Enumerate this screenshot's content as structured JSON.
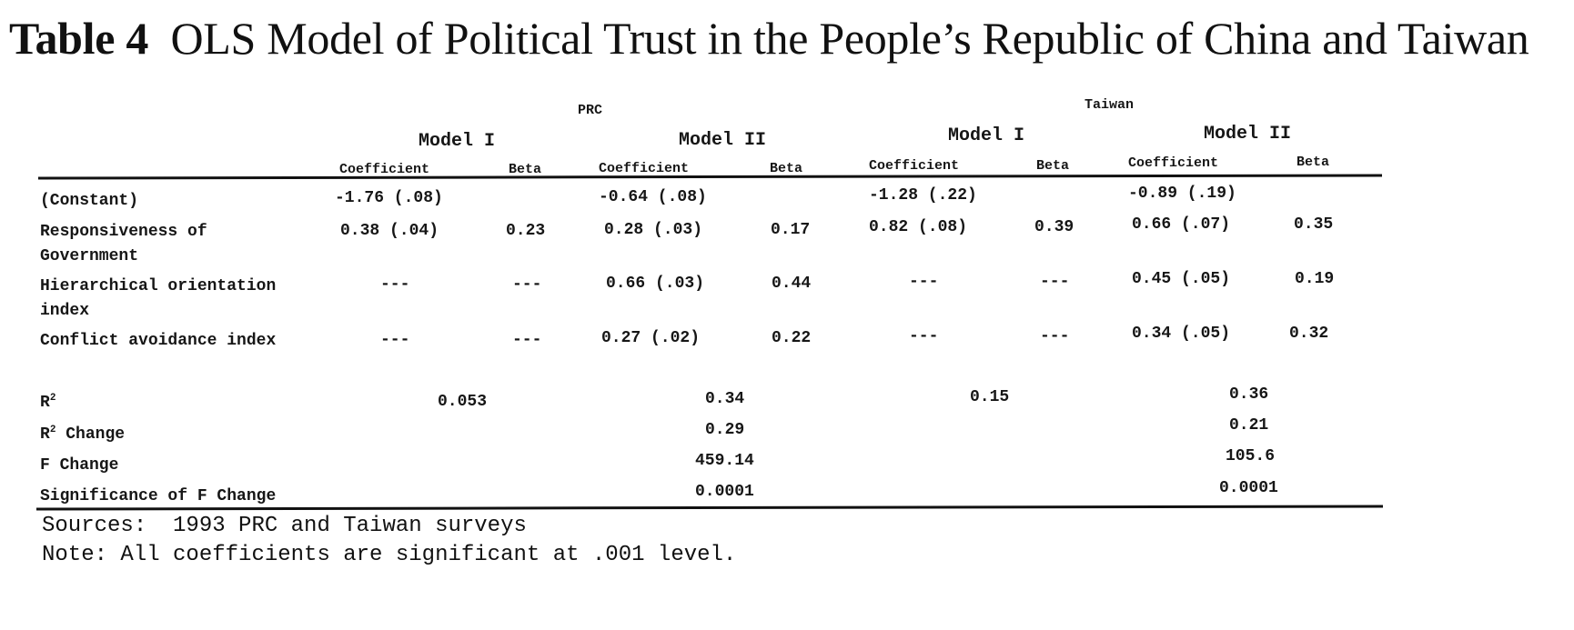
{
  "title": {
    "label": "Table 4",
    "text": "OLS Model of Political Trust in the People’s Republic of China and Taiwan"
  },
  "groups": {
    "prc": "PRC",
    "taiwan": "Taiwan"
  },
  "models": {
    "m1": "Model I",
    "m2": "Model II"
  },
  "columns": {
    "coef": "Coefficient",
    "beta": "Beta"
  },
  "rows": [
    {
      "label": "(Constant)",
      "values": [
        "-1.76 (.08)",
        "",
        "-0.64 (.08)",
        "",
        "-1.28 (.22)",
        "",
        "-0.89 (.19)",
        ""
      ]
    },
    {
      "label": "Responsiveness of Government",
      "values": [
        "0.38 (.04)",
        "0.23",
        "0.28 (.03)",
        "0.17",
        "0.82 (.08)",
        "0.39",
        "0.66 (.07)",
        "0.35"
      ]
    },
    {
      "label": "Hierarchical orientation index",
      "values": [
        "---",
        "---",
        "0.66 (.03)",
        "0.44",
        "---",
        "---",
        "0.45 (.05)",
        "0.19"
      ]
    },
    {
      "label": "Conflict avoidance index",
      "values": [
        "---",
        "---",
        "0.27 (.02)",
        "0.22",
        "---",
        "---",
        "0.34 (.05)",
        "0.32"
      ]
    }
  ],
  "stats": {
    "r2": {
      "label": "R",
      "sup": "2",
      "values": [
        "0.053",
        "0.34",
        "0.15",
        "0.36"
      ]
    },
    "r2_change": {
      "label": "Change",
      "sup": "2",
      "prefix": "R",
      "values": [
        "0.29",
        "0.21"
      ]
    },
    "f_change": {
      "label": "F Change",
      "values": [
        "459.14",
        "105.6"
      ]
    },
    "sig_f_change": {
      "label": "Significance of F Change",
      "values": [
        "0.0001",
        "0.0001"
      ]
    }
  },
  "footnotes": {
    "sources": "Sources:  1993 PRC and Taiwan surveys",
    "note": "Note: All coefficients are significant at .001 level."
  }
}
